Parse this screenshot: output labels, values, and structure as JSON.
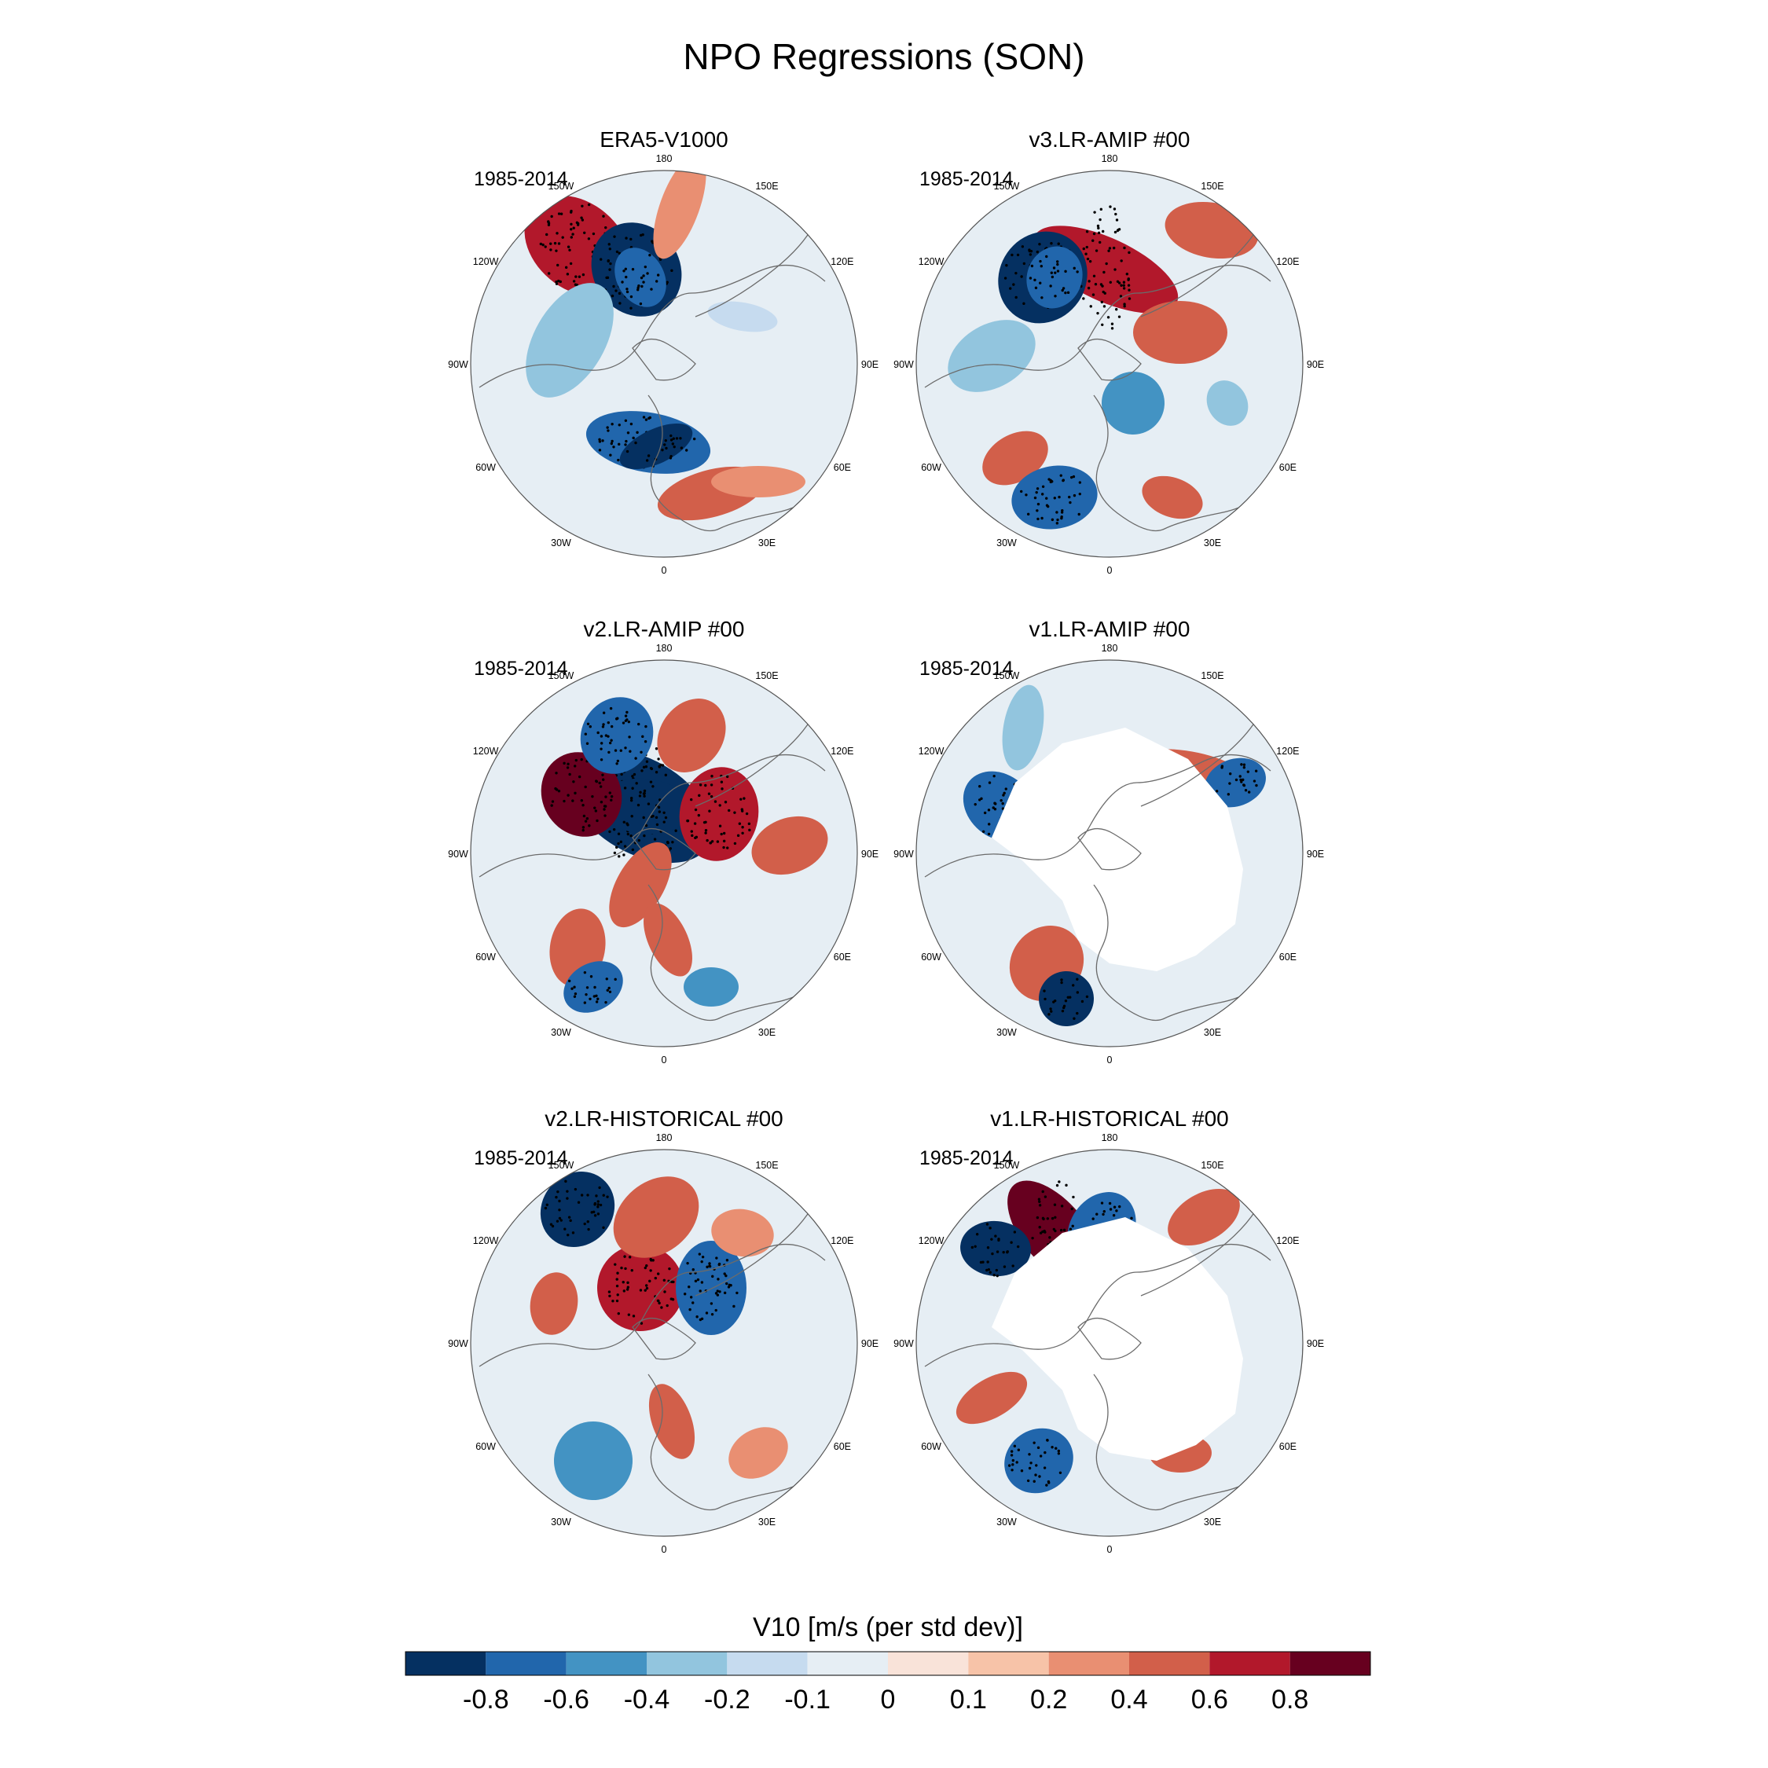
{
  "figure": {
    "title": "NPO Regressions (SON)"
  },
  "panels": [
    {
      "title": "ERA5-V1000",
      "period": "1985-2014",
      "land_masked": false
    },
    {
      "title": "v3.LR-AMIP  #00",
      "period": "1985-2014",
      "land_masked": false
    },
    {
      "title": "v2.LR-AMIP  #00",
      "period": "1985-2014",
      "land_masked": false
    },
    {
      "title": "v1.LR-AMIP  #00",
      "period": "1985-2014",
      "land_masked": true
    },
    {
      "title": "v2.LR-HISTORICAL  #00",
      "period": "1985-2014",
      "land_masked": false
    },
    {
      "title": "v1.LR-HISTORICAL  #00",
      "period": "1985-2014",
      "land_masked": true
    }
  ],
  "longitude_labels": [
    "180",
    "150E",
    "120E",
    "90E",
    "60E",
    "30E",
    "0",
    "30W",
    "60W",
    "90W",
    "120W",
    "150W"
  ],
  "colorbar": {
    "title": "V10 [m/s (per std dev)]",
    "tick_labels": [
      "-0.8",
      "-0.6",
      "-0.4",
      "-0.2",
      "-0.1",
      "0",
      "0.1",
      "0.2",
      "0.4",
      "0.6",
      "0.8"
    ],
    "colors": [
      "#053061",
      "#2166ac",
      "#4393c3",
      "#92c5de",
      "#c6dbef",
      "#e6eef4",
      "#f9e3d9",
      "#f7c3a8",
      "#e98f72",
      "#d25f4a",
      "#b2182b",
      "#67001f"
    ]
  }
}
